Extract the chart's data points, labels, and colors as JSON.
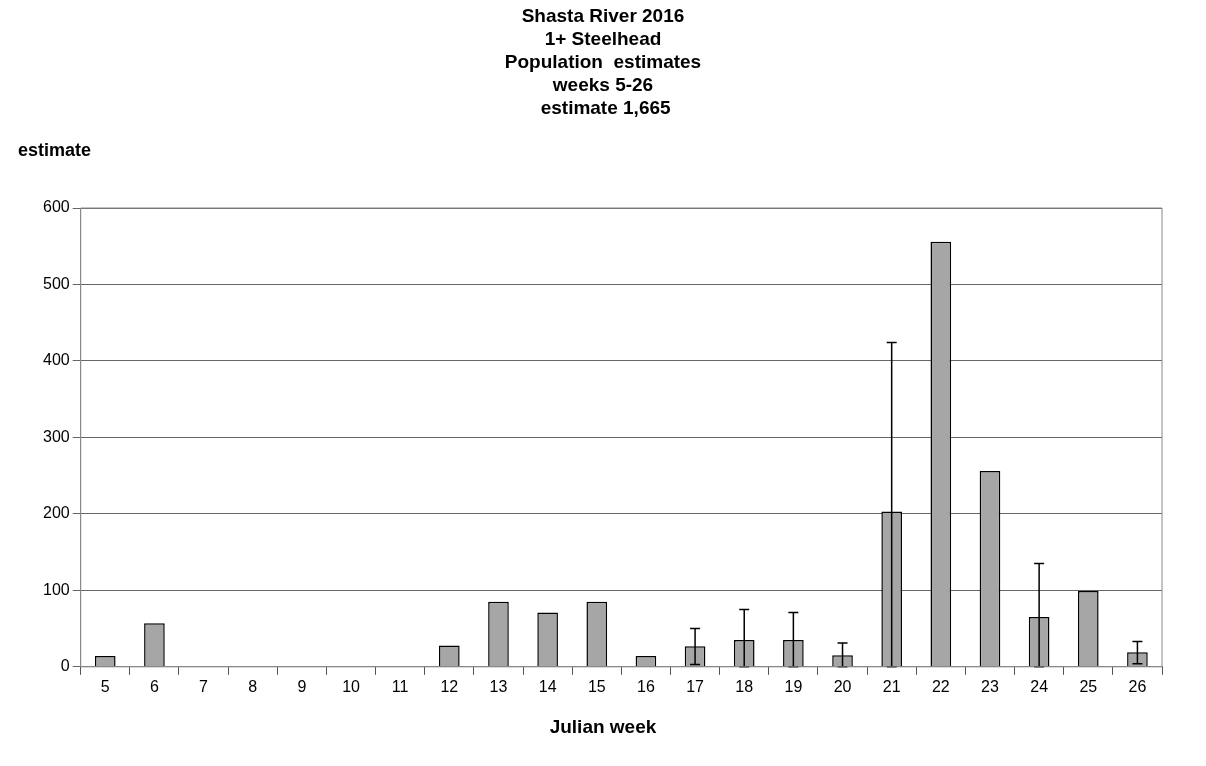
{
  "chart_data": {
    "type": "bar",
    "title": "Shasta River 2016\n1+ Steelhead\nPopulation  estimates\nweeks 5-26\n estimate 1,665",
    "xlabel": "Julian week",
    "ylabel": "estimate",
    "categories": [
      "5",
      "6",
      "7",
      "8",
      "9",
      "10",
      "11",
      "12",
      "13",
      "14",
      "15",
      "16",
      "17",
      "18",
      "19",
      "20",
      "21",
      "22",
      "23",
      "24",
      "25",
      "26"
    ],
    "values": [
      14,
      57,
      0,
      0,
      0,
      0,
      0,
      28,
      85,
      71,
      85,
      14,
      27,
      35,
      35,
      15,
      203,
      556,
      256,
      65,
      99,
      19
    ],
    "errors": [
      null,
      null,
      null,
      null,
      null,
      null,
      null,
      null,
      null,
      null,
      null,
      null,
      [
        3,
        50
      ],
      [
        0,
        75
      ],
      [
        0,
        71
      ],
      [
        0,
        31
      ],
      [
        0,
        424
      ],
      null,
      null,
      [
        0,
        135
      ],
      null,
      [
        4,
        33
      ]
    ],
    "color": "#a6a6a6",
    "ylim": [
      0,
      600
    ],
    "yticks": [
      0,
      100,
      200,
      300,
      400,
      500,
      600
    ],
    "grid": "y",
    "legend": false
  }
}
